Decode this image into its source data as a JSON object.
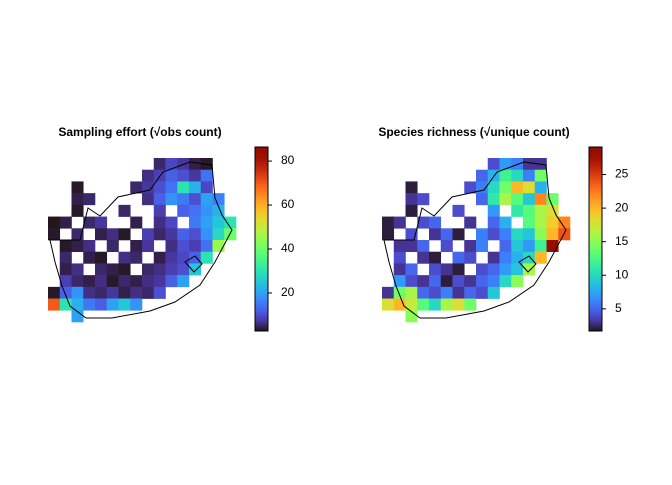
{
  "panels": [
    {
      "title": "Sampling effort (√obs count)",
      "colormap": "turbo",
      "clim": [
        2.7,
        86.4
      ],
      "ticks": [
        20,
        40,
        60,
        80
      ],
      "grid": [
        [
          null,
          null,
          null,
          null,
          null,
          null,
          null,
          null,
          null,
          5,
          9,
          7,
          4,
          3,
          null,
          null
        ],
        [
          null,
          null,
          null,
          null,
          null,
          null,
          null,
          null,
          6,
          8,
          12,
          10,
          7,
          14,
          null,
          null
        ],
        [
          null,
          null,
          3,
          null,
          null,
          null,
          null,
          5,
          7,
          10,
          14,
          30,
          22,
          9,
          null,
          null
        ],
        [
          null,
          null,
          4,
          5,
          null,
          null,
          null,
          null,
          6,
          12,
          18,
          15,
          10,
          20,
          16,
          null
        ],
        [
          null,
          null,
          3,
          null,
          null,
          null,
          5,
          null,
          null,
          8,
          null,
          12,
          14,
          18,
          22,
          null
        ],
        [
          2,
          4,
          null,
          5,
          7,
          null,
          null,
          4,
          null,
          6,
          9,
          null,
          15,
          20,
          25,
          30
        ],
        [
          3,
          null,
          5,
          null,
          4,
          6,
          3,
          null,
          8,
          5,
          7,
          12,
          10,
          18,
          28,
          40
        ],
        [
          null,
          3,
          4,
          6,
          null,
          5,
          null,
          4,
          7,
          null,
          6,
          10,
          8,
          14,
          45,
          null
        ],
        [
          null,
          5,
          null,
          4,
          3,
          null,
          6,
          5,
          null,
          4,
          7,
          9,
          12,
          30,
          null,
          null
        ],
        [
          null,
          4,
          6,
          null,
          5,
          4,
          3,
          null,
          5,
          6,
          8,
          10,
          25,
          null,
          null,
          null
        ],
        [
          null,
          8,
          5,
          4,
          6,
          3,
          5,
          4,
          6,
          7,
          12,
          20,
          null,
          null,
          null,
          null
        ],
        [
          3,
          12,
          18,
          6,
          5,
          7,
          4,
          6,
          5,
          10,
          null,
          null,
          null,
          null,
          null,
          null
        ],
        [
          70,
          30,
          22,
          15,
          12,
          20,
          25,
          18,
          null,
          null,
          null,
          null,
          null,
          null,
          null,
          null
        ],
        [
          null,
          null,
          20,
          null,
          null,
          null,
          null,
          null,
          null,
          null,
          null,
          null,
          null,
          null,
          null,
          null
        ]
      ]
    },
    {
      "title": "Species richness (√unique count)",
      "colormap": "turbo",
      "clim": [
        1.7,
        29.1
      ],
      "ticks": [
        5,
        10,
        15,
        20,
        25
      ],
      "grid": [
        [
          null,
          null,
          null,
          null,
          null,
          null,
          null,
          null,
          null,
          4,
          7,
          6,
          3,
          3,
          null,
          null
        ],
        [
          null,
          null,
          null,
          null,
          null,
          null,
          null,
          null,
          5,
          8,
          12,
          10,
          6,
          14,
          null,
          null
        ],
        [
          null,
          null,
          2,
          null,
          null,
          null,
          null,
          4,
          6,
          10,
          14,
          20,
          18,
          8,
          null,
          null
        ],
        [
          null,
          null,
          3,
          4,
          null,
          null,
          null,
          null,
          5,
          11,
          16,
          13,
          9,
          22,
          14,
          null
        ],
        [
          null,
          null,
          2,
          null,
          null,
          null,
          4,
          null,
          null,
          7,
          null,
          11,
          13,
          16,
          18,
          null
        ],
        [
          2,
          3,
          null,
          4,
          5,
          null,
          null,
          3,
          null,
          5,
          8,
          null,
          13,
          16,
          19,
          22
        ],
        [
          2,
          null,
          4,
          null,
          3,
          5,
          2,
          null,
          6,
          4,
          6,
          10,
          9,
          15,
          20,
          24
        ],
        [
          null,
          3,
          3,
          5,
          null,
          4,
          null,
          3,
          6,
          null,
          5,
          9,
          7,
          12,
          28,
          null
        ],
        [
          null,
          4,
          null,
          3,
          2,
          null,
          5,
          4,
          null,
          3,
          6,
          8,
          10,
          20,
          null,
          null
        ],
        [
          null,
          3,
          5,
          null,
          4,
          3,
          2,
          null,
          4,
          5,
          7,
          9,
          16,
          null,
          null,
          null
        ],
        [
          null,
          7,
          4,
          3,
          5,
          2,
          4,
          3,
          5,
          6,
          10,
          15,
          null,
          null,
          null,
          null
        ],
        [
          3,
          14,
          16,
          5,
          4,
          6,
          3,
          5,
          4,
          9,
          null,
          null,
          null,
          null,
          null,
          null
        ],
        [
          18,
          20,
          17,
          13,
          10,
          16,
          18,
          14,
          null,
          null,
          null,
          null,
          null,
          null,
          null,
          null
        ],
        [
          null,
          null,
          15,
          null,
          null,
          null,
          null,
          null,
          null,
          null,
          null,
          null,
          null,
          null,
          null,
          null
        ]
      ]
    }
  ]
}
